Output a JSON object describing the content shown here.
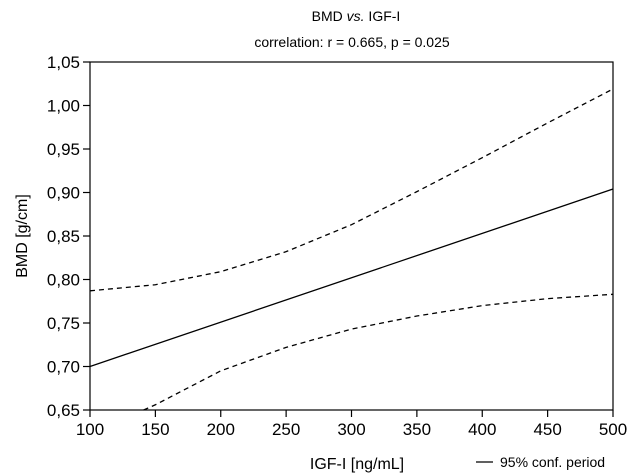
{
  "chart_data": {
    "type": "line",
    "title": "BMD vs. IGF-I",
    "title_prefix": "BMD ",
    "title_italic": "vs.",
    "title_suffix": " IGF-I",
    "subtitle": "correlation: r =  0.665, p = 0.025",
    "xlabel": "IGF-I [ng/mL]",
    "ylabel": "BMD [g/cm]",
    "xlim": [
      100,
      500
    ],
    "ylim": [
      0.65,
      1.05
    ],
    "x_ticks": [
      100,
      150,
      200,
      250,
      300,
      350,
      400,
      450,
      500
    ],
    "x_tick_labels": [
      "100",
      "150",
      "200",
      "250",
      "300",
      "350",
      "400",
      "450",
      "500"
    ],
    "y_ticks": [
      0.65,
      0.7,
      0.75,
      0.8,
      0.85,
      0.9,
      0.95,
      1.0,
      1.05
    ],
    "y_tick_labels": [
      "0,65",
      "0,70",
      "0,75",
      "0,80",
      "0,85",
      "0,90",
      "0,95",
      "1,00",
      "1,05"
    ],
    "grid": false,
    "legend_position": "bottom-right",
    "legend_text": "95% conf. period",
    "series": [
      {
        "style": "solid",
        "x": [
          100,
          500
        ],
        "y": [
          0.7,
          0.904
        ]
      },
      {
        "style": "dashed",
        "x": [
          100,
          150,
          200,
          250,
          300,
          350,
          400,
          450,
          500
        ],
        "y": [
          0.787,
          0.794,
          0.809,
          0.832,
          0.863,
          0.901,
          0.94,
          0.98,
          1.019
        ]
      },
      {
        "style": "dashed",
        "x": [
          141,
          150,
          200,
          250,
          300,
          350,
          400,
          450,
          500
        ],
        "y": [
          0.65,
          0.656,
          0.695,
          0.722,
          0.743,
          0.758,
          0.77,
          0.778,
          0.783
        ]
      }
    ]
  }
}
